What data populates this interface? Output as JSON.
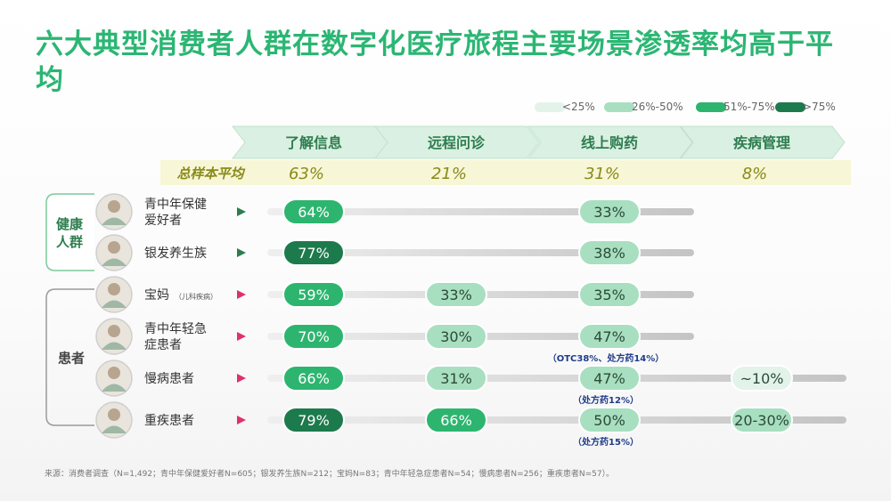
{
  "title": "六大典型消费者人群在数字化医疗旅程主要场景渗透率均高于平均",
  "legend": [
    {
      "label": "<25%",
      "color": "#e3f3ea"
    },
    {
      "label": "26%-50%",
      "color": "#a8dfc0"
    },
    {
      "label": "51%-75%",
      "color": "#2db56f"
    },
    {
      "label": ">75%",
      "color": "#1d7a4c"
    }
  ],
  "groups": [
    {
      "label": "健康人群",
      "chars": [
        "健康",
        "人群"
      ]
    },
    {
      "label": "患者",
      "chars": [
        "患者"
      ]
    }
  ],
  "footnote": "来源：消费者调查（N=1,492；青中年保健爱好者N=605；银发养生族N=212；宝妈N=83；青中年轻急症患者N=54；慢病患者N=256；重疾患者N=57）。",
  "chart_data": {
    "type": "table",
    "columns": [
      "了解信息",
      "远程问诊",
      "线上购药",
      "疾病管理"
    ],
    "average": {
      "label": "总样本平均",
      "values": [
        "63%",
        "21%",
        "31%",
        "8%"
      ]
    },
    "rows": [
      {
        "name": "青中年保健爱好者",
        "name_lines": [
          "青中年保健",
          "爱好者"
        ],
        "sub": "",
        "group": "健康人群",
        "values": [
          "64%",
          null,
          "33%",
          null
        ],
        "notes": [
          null,
          null,
          null,
          null
        ]
      },
      {
        "name": "银发养生族",
        "name_lines": [
          "银发养生族"
        ],
        "sub": "",
        "group": "健康人群",
        "values": [
          "77%",
          null,
          "38%",
          null
        ],
        "notes": [
          null,
          null,
          null,
          null
        ]
      },
      {
        "name": "宝妈",
        "name_lines": [
          "宝妈"
        ],
        "sub": "（儿科疾病）",
        "group": "患者",
        "values": [
          "59%",
          "33%",
          "35%",
          null
        ],
        "notes": [
          null,
          null,
          null,
          null
        ]
      },
      {
        "name": "青中年轻急症患者",
        "name_lines": [
          "青中年轻急",
          "症患者"
        ],
        "sub": "",
        "group": "患者",
        "values": [
          "70%",
          "30%",
          "47%",
          null
        ],
        "notes": [
          null,
          null,
          "（OTC38%、处方药14%）",
          null
        ]
      },
      {
        "name": "慢病患者",
        "name_lines": [
          "慢病患者"
        ],
        "sub": "",
        "group": "患者",
        "values": [
          "66%",
          "31%",
          "47%",
          "~10%"
        ],
        "notes": [
          null,
          null,
          "（处方药12%）",
          null
        ]
      },
      {
        "name": "重疾患者",
        "name_lines": [
          "重疾患者"
        ],
        "sub": "",
        "group": "患者",
        "values": [
          "79%",
          "66%",
          "50%",
          "20-30%"
        ],
        "notes": [
          null,
          null,
          "（处方药15%）",
          null
        ]
      }
    ]
  }
}
